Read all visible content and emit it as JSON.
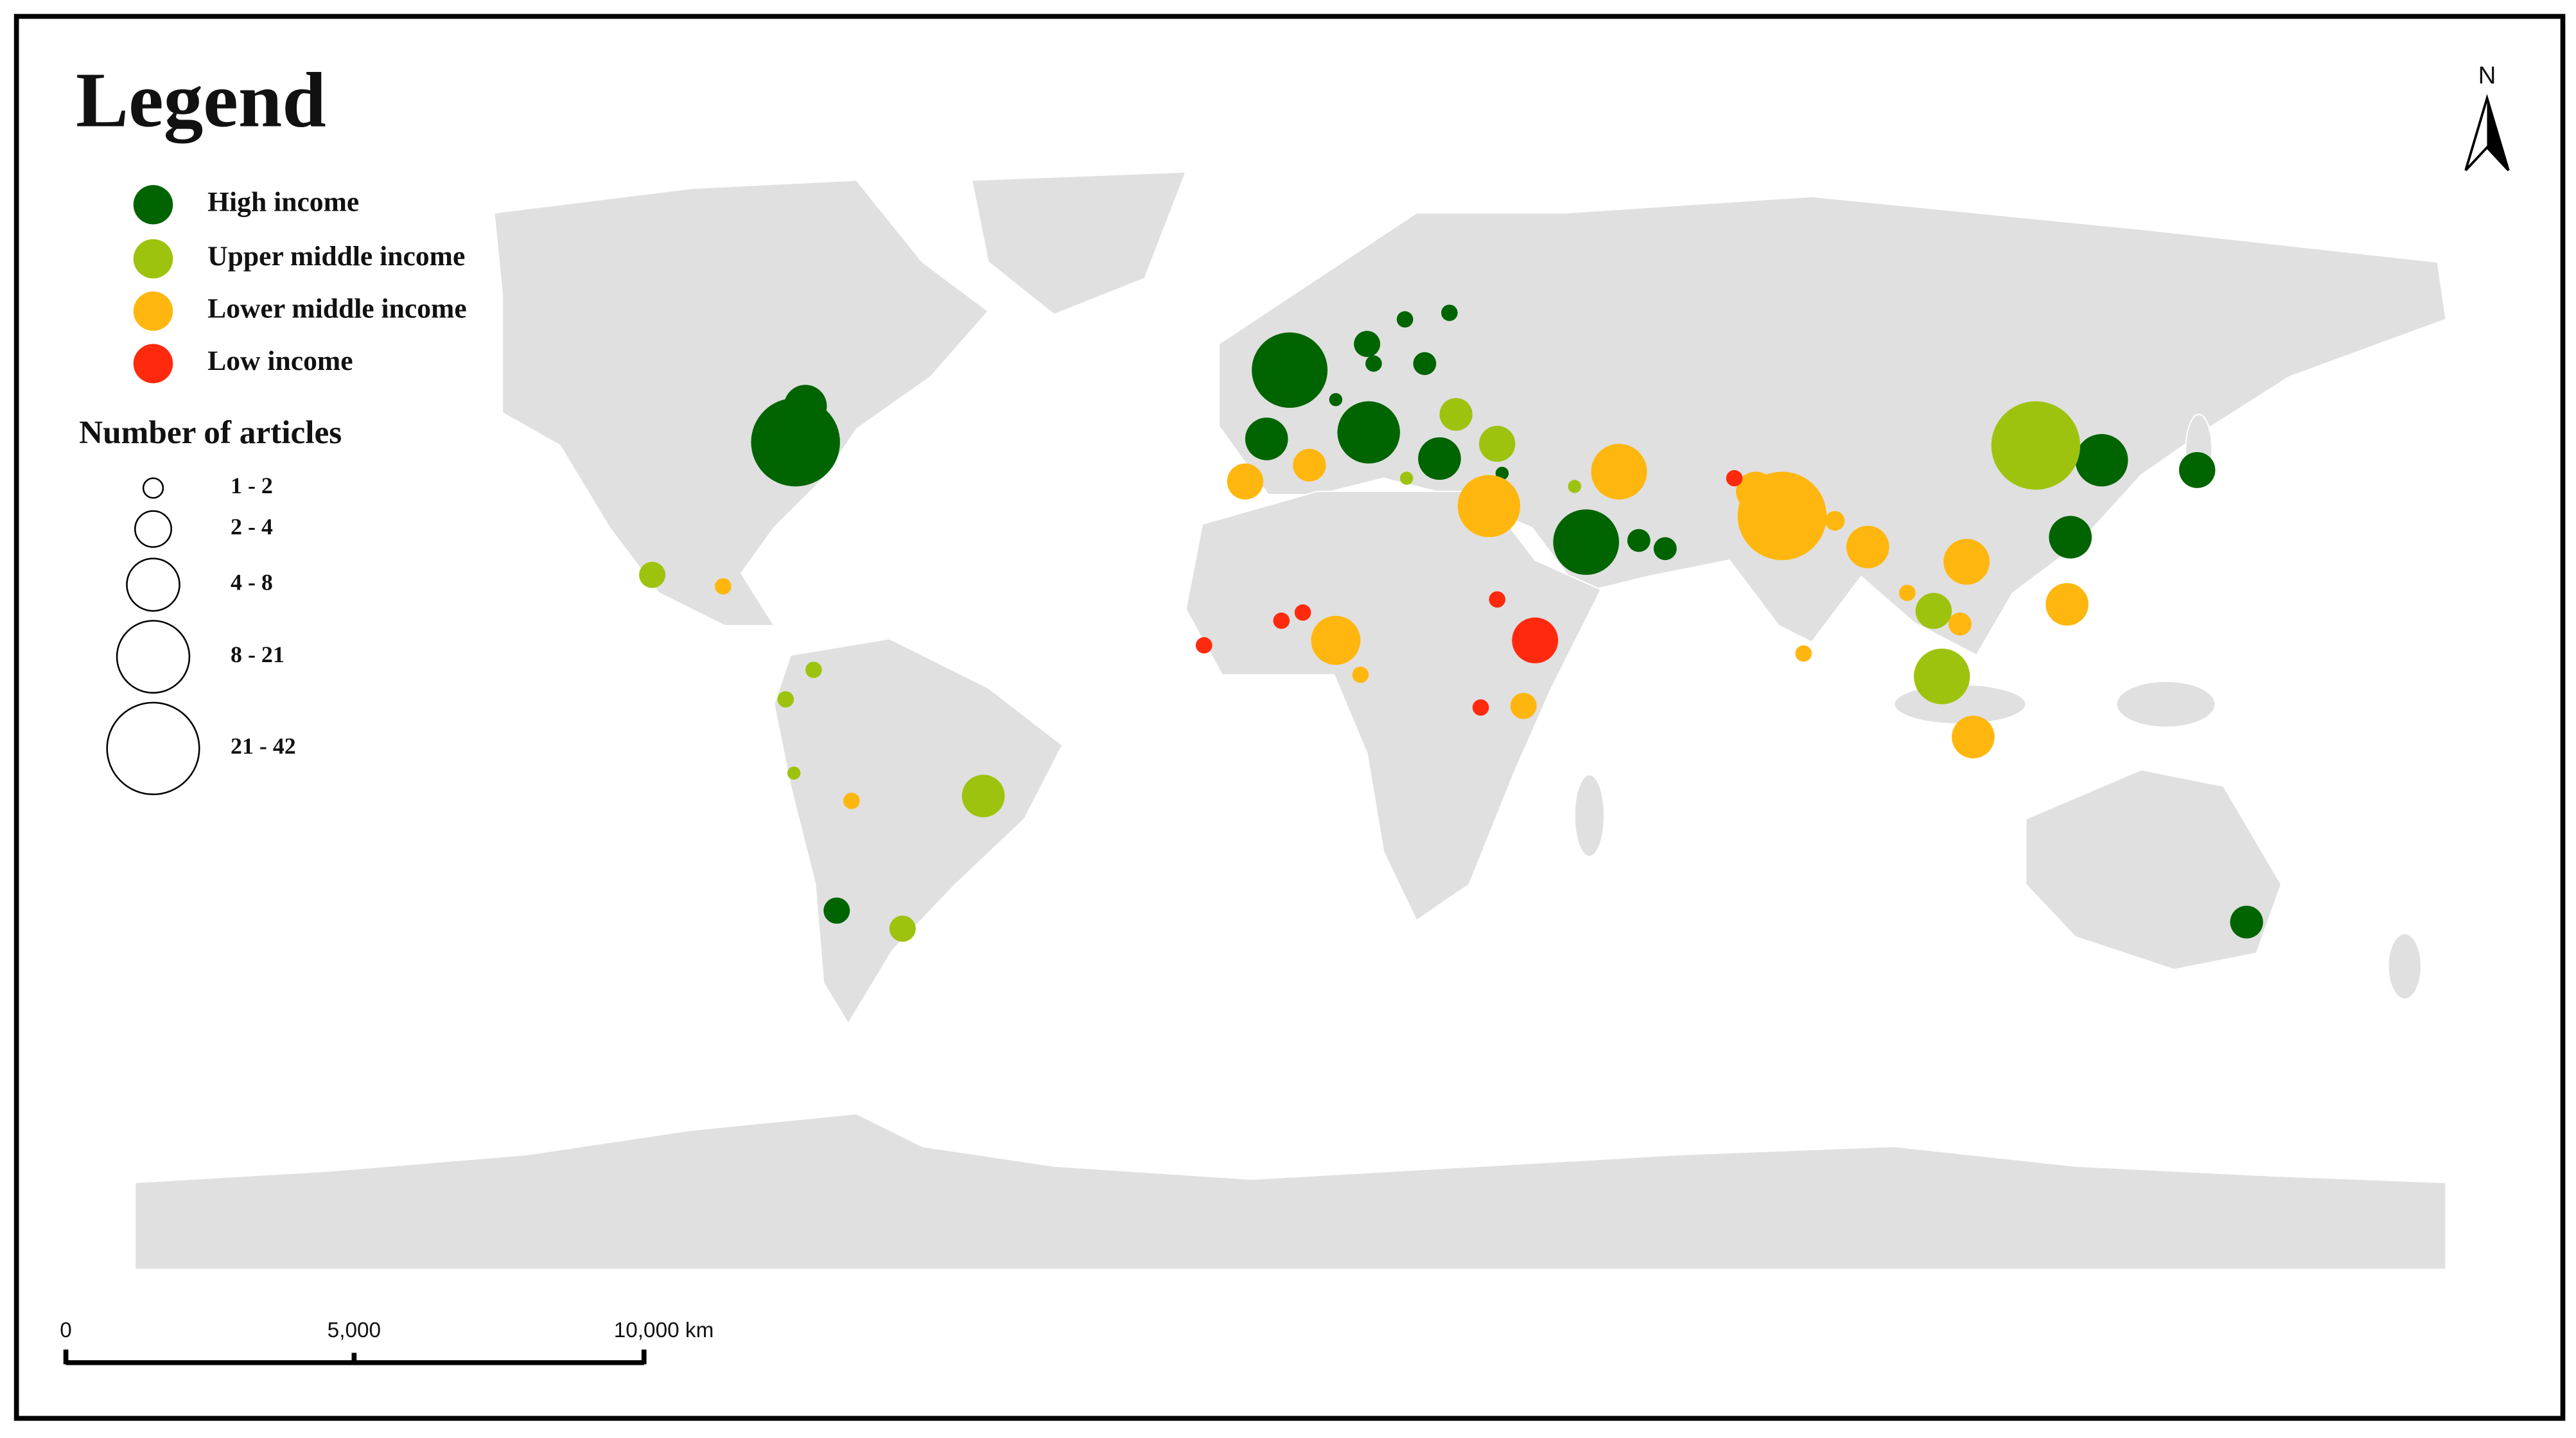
{
  "legend": {
    "title": "Legend",
    "items": [
      {
        "label": "High income",
        "color": "#006400"
      },
      {
        "label": "Upper middle income",
        "color": "#9dc30e"
      },
      {
        "label": "Lower middle income",
        "color": "#ffb70f"
      },
      {
        "label": "Low income",
        "color": "#ff2a0e"
      }
    ],
    "size_title": "Number of articles",
    "size_classes": [
      "1 - 2",
      "2 - 4",
      "4 - 8",
      "8 - 21",
      "21 - 42"
    ]
  },
  "scale_bar": {
    "labels": [
      "0",
      "5,000",
      "10,000 km"
    ]
  },
  "north_arrow": {
    "label": "N"
  }
}
